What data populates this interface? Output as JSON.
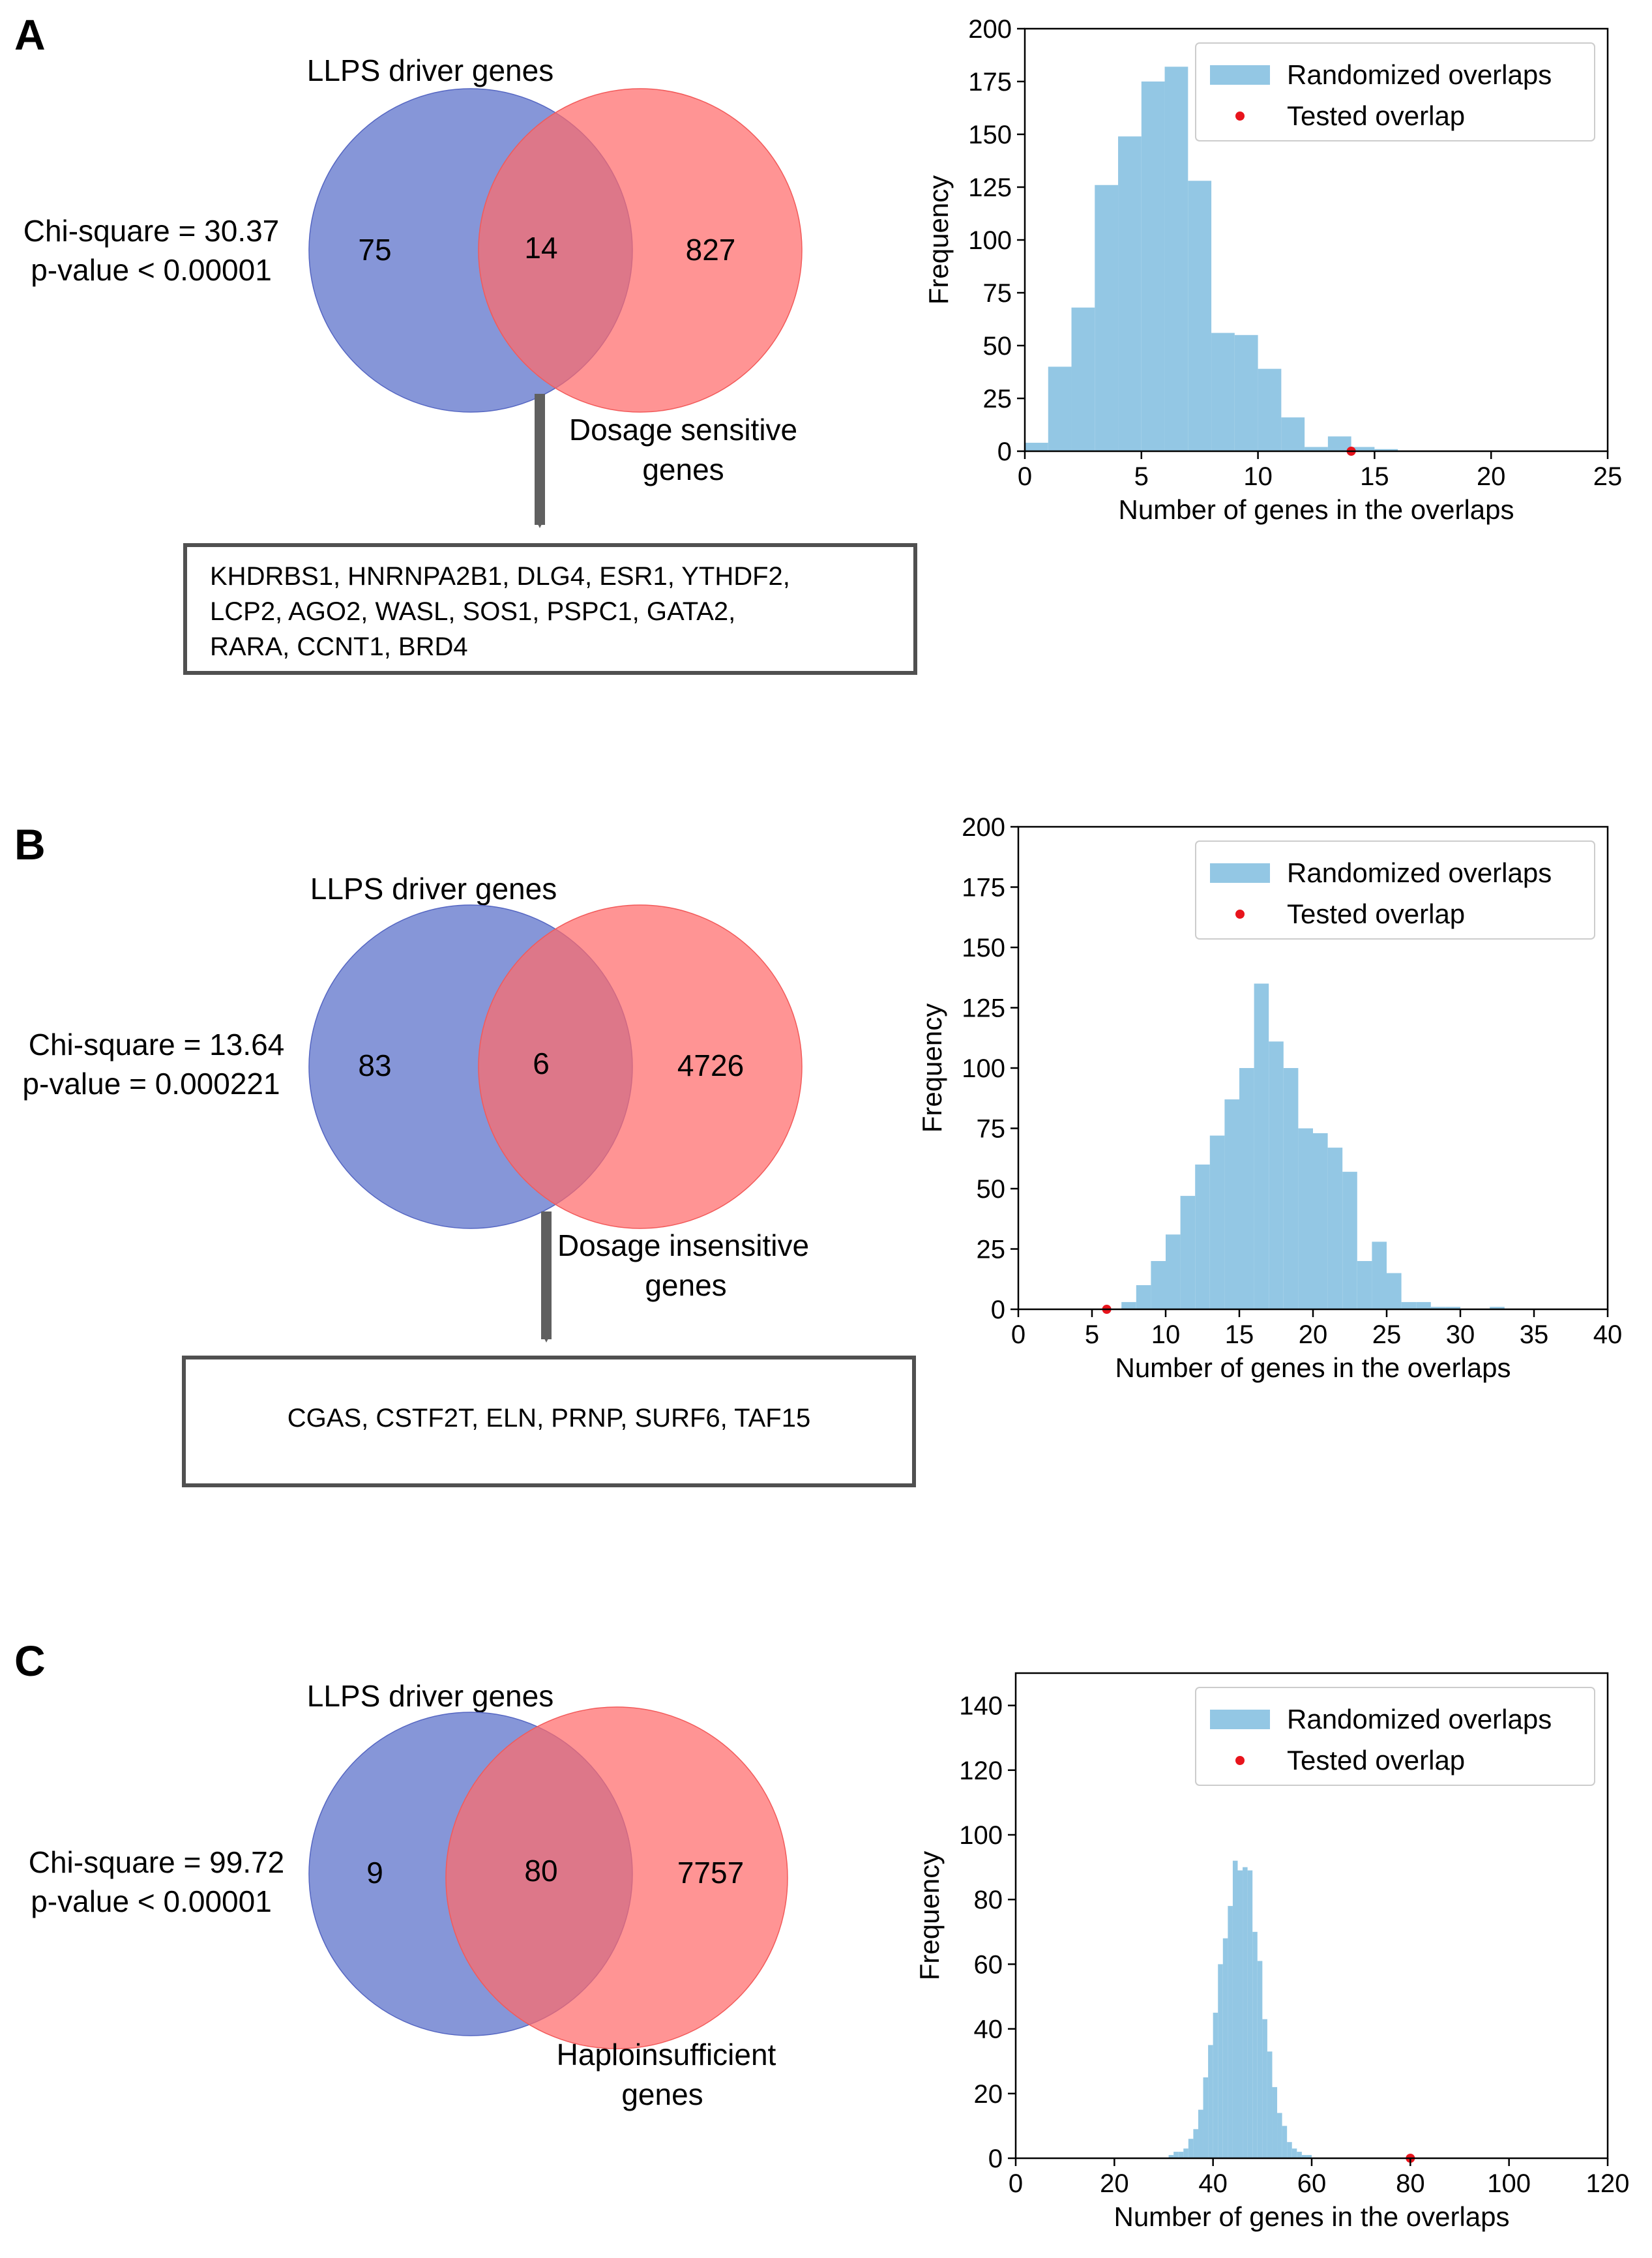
{
  "panels": [
    {
      "letter": "A",
      "venn": {
        "set1_label": "LLPS driver genes",
        "set2_label_lines": [
          "Dosage sensitive",
          "genes"
        ],
        "only1": "75",
        "both": "14",
        "only2": "827",
        "stat_lines": [
          "Chi-square = 30.37",
          "p-value < 0.00001"
        ],
        "gene_lines": [
          "KHDRBS1,  HNRNPA2B1,  DLG4,  ESR1,  YTHDF2,",
          "LCP2,  AGO2,  WASL,  SOS1,  PSPC1,  GATA2,",
          "RARA, CCNT1, BRD4"
        ]
      }
    },
    {
      "letter": "B",
      "venn": {
        "set1_label": "LLPS driver genes",
        "set2_label_lines": [
          "Dosage insensitive",
          "genes"
        ],
        "only1": "83",
        "both": "6",
        "only2": "4726",
        "stat_lines": [
          "Chi-square = 13.64",
          "p-value = 0.000221"
        ],
        "gene_lines": [
          "CGAS, CSTF2T, ELN, PRNP, SURF6, TAF15"
        ]
      }
    },
    {
      "letter": "C",
      "venn": {
        "set1_label": "LLPS driver genes",
        "set2_label_lines": [
          "Haploinsufficient",
          "genes"
        ],
        "only1": "9",
        "both": "80",
        "only2": "7757",
        "stat_lines": [
          "Chi-square = 99.72",
          "p-value < 0.00001"
        ],
        "gene_lines": []
      }
    }
  ],
  "colors": {
    "venn_left": "#6b7fd0",
    "venn_right": "#ff6b6b",
    "hist_fill": "#93c7e4",
    "tested_point": "#e8141c",
    "arrow": "#606060"
  },
  "chart_data": [
    {
      "type": "histogram",
      "xlabel": "Number of genes in the overlaps",
      "ylabel": "Frequency",
      "xlim": [
        0,
        25
      ],
      "ylim": [
        0,
        200
      ],
      "xticks": [
        0,
        5,
        10,
        15,
        20,
        25
      ],
      "yticks": [
        0,
        25,
        50,
        75,
        100,
        125,
        150,
        175,
        200
      ],
      "series": [
        {
          "name": "Randomized overlaps",
          "bins": [
            [
              0,
              1,
              4
            ],
            [
              1,
              2,
              40
            ],
            [
              2,
              3,
              68
            ],
            [
              3,
              4,
              126
            ],
            [
              4,
              5,
              149
            ],
            [
              5,
              6,
              175
            ],
            [
              6,
              7,
              182
            ],
            [
              7,
              8,
              128
            ],
            [
              8,
              9,
              56
            ],
            [
              9,
              10,
              55
            ],
            [
              10,
              11,
              39
            ],
            [
              11,
              12,
              16
            ],
            [
              12,
              13,
              2
            ],
            [
              13,
              14,
              7
            ],
            [
              14,
              15,
              2
            ],
            [
              15,
              16,
              1
            ]
          ]
        },
        {
          "name": "Tested overlap",
          "points": [
            [
              14,
              0
            ]
          ]
        }
      ],
      "legend": [
        "Randomized overlaps",
        "Tested overlap"
      ],
      "legend_position": "top-right"
    },
    {
      "type": "histogram",
      "xlabel": "Number of genes in the overlaps",
      "ylabel": "Frequency",
      "xlim": [
        0,
        40
      ],
      "ylim": [
        0,
        200
      ],
      "xticks": [
        0,
        5,
        10,
        15,
        20,
        25,
        30,
        35,
        40
      ],
      "yticks": [
        0,
        25,
        50,
        75,
        100,
        125,
        150,
        175,
        200
      ],
      "series": [
        {
          "name": "Randomized overlaps",
          "bins": [
            [
              7,
              8,
              3
            ],
            [
              8,
              9,
              10
            ],
            [
              9,
              10,
              20
            ],
            [
              10,
              11,
              31
            ],
            [
              11,
              12,
              47
            ],
            [
              12,
              13,
              60
            ],
            [
              13,
              14,
              72
            ],
            [
              14,
              15,
              87
            ],
            [
              15,
              16,
              100
            ],
            [
              16,
              17,
              135
            ],
            [
              17,
              18,
              111
            ],
            [
              18,
              19,
              100
            ],
            [
              19,
              20,
              75
            ],
            [
              20,
              21,
              73
            ],
            [
              21,
              22,
              67
            ],
            [
              22,
              23,
              57
            ],
            [
              23,
              24,
              20
            ],
            [
              24,
              25,
              28
            ],
            [
              25,
              26,
              15
            ],
            [
              26,
              27,
              3
            ],
            [
              27,
              28,
              3
            ],
            [
              28,
              29,
              1
            ],
            [
              29,
              30,
              1
            ],
            [
              32,
              33,
              1
            ]
          ]
        },
        {
          "name": "Tested overlap",
          "points": [
            [
              6,
              0
            ]
          ]
        }
      ],
      "legend": [
        "Randomized overlaps",
        "Tested overlap"
      ],
      "legend_position": "top-right"
    },
    {
      "type": "histogram",
      "xlabel": "Number of genes in the overlaps",
      "ylabel": "Frequency",
      "xlim": [
        0,
        120
      ],
      "ylim": [
        0,
        150
      ],
      "xticks": [
        0,
        20,
        40,
        60,
        80,
        100,
        120
      ],
      "yticks": [
        0,
        20,
        40,
        60,
        80,
        100,
        120,
        140
      ],
      "series": [
        {
          "name": "Randomized overlaps",
          "bins": [
            [
              31,
              32,
              1
            ],
            [
              32,
              33,
              2
            ],
            [
              33,
              34,
              2
            ],
            [
              34,
              35,
              3
            ],
            [
              35,
              36,
              6
            ],
            [
              36,
              37,
              9
            ],
            [
              37,
              38,
              15
            ],
            [
              38,
              39,
              25
            ],
            [
              39,
              40,
              35
            ],
            [
              40,
              41,
              45
            ],
            [
              41,
              42,
              60
            ],
            [
              42,
              43,
              68
            ],
            [
              43,
              44,
              78
            ],
            [
              44,
              45,
              92
            ],
            [
              45,
              46,
              89
            ],
            [
              46,
              47,
              90
            ],
            [
              47,
              48,
              89
            ],
            [
              48,
              49,
              70
            ],
            [
              49,
              50,
              61
            ],
            [
              50,
              51,
              43
            ],
            [
              51,
              52,
              33
            ],
            [
              52,
              53,
              22
            ],
            [
              53,
              54,
              14
            ],
            [
              54,
              55,
              10
            ],
            [
              55,
              56,
              5
            ],
            [
              56,
              57,
              3
            ],
            [
              57,
              58,
              2
            ],
            [
              58,
              59,
              1
            ],
            [
              59,
              60,
              1
            ]
          ]
        },
        {
          "name": "Tested overlap",
          "points": [
            [
              80,
              0
            ]
          ]
        }
      ],
      "legend": [
        "Randomized overlaps",
        "Tested overlap"
      ],
      "legend_position": "top-right"
    }
  ]
}
